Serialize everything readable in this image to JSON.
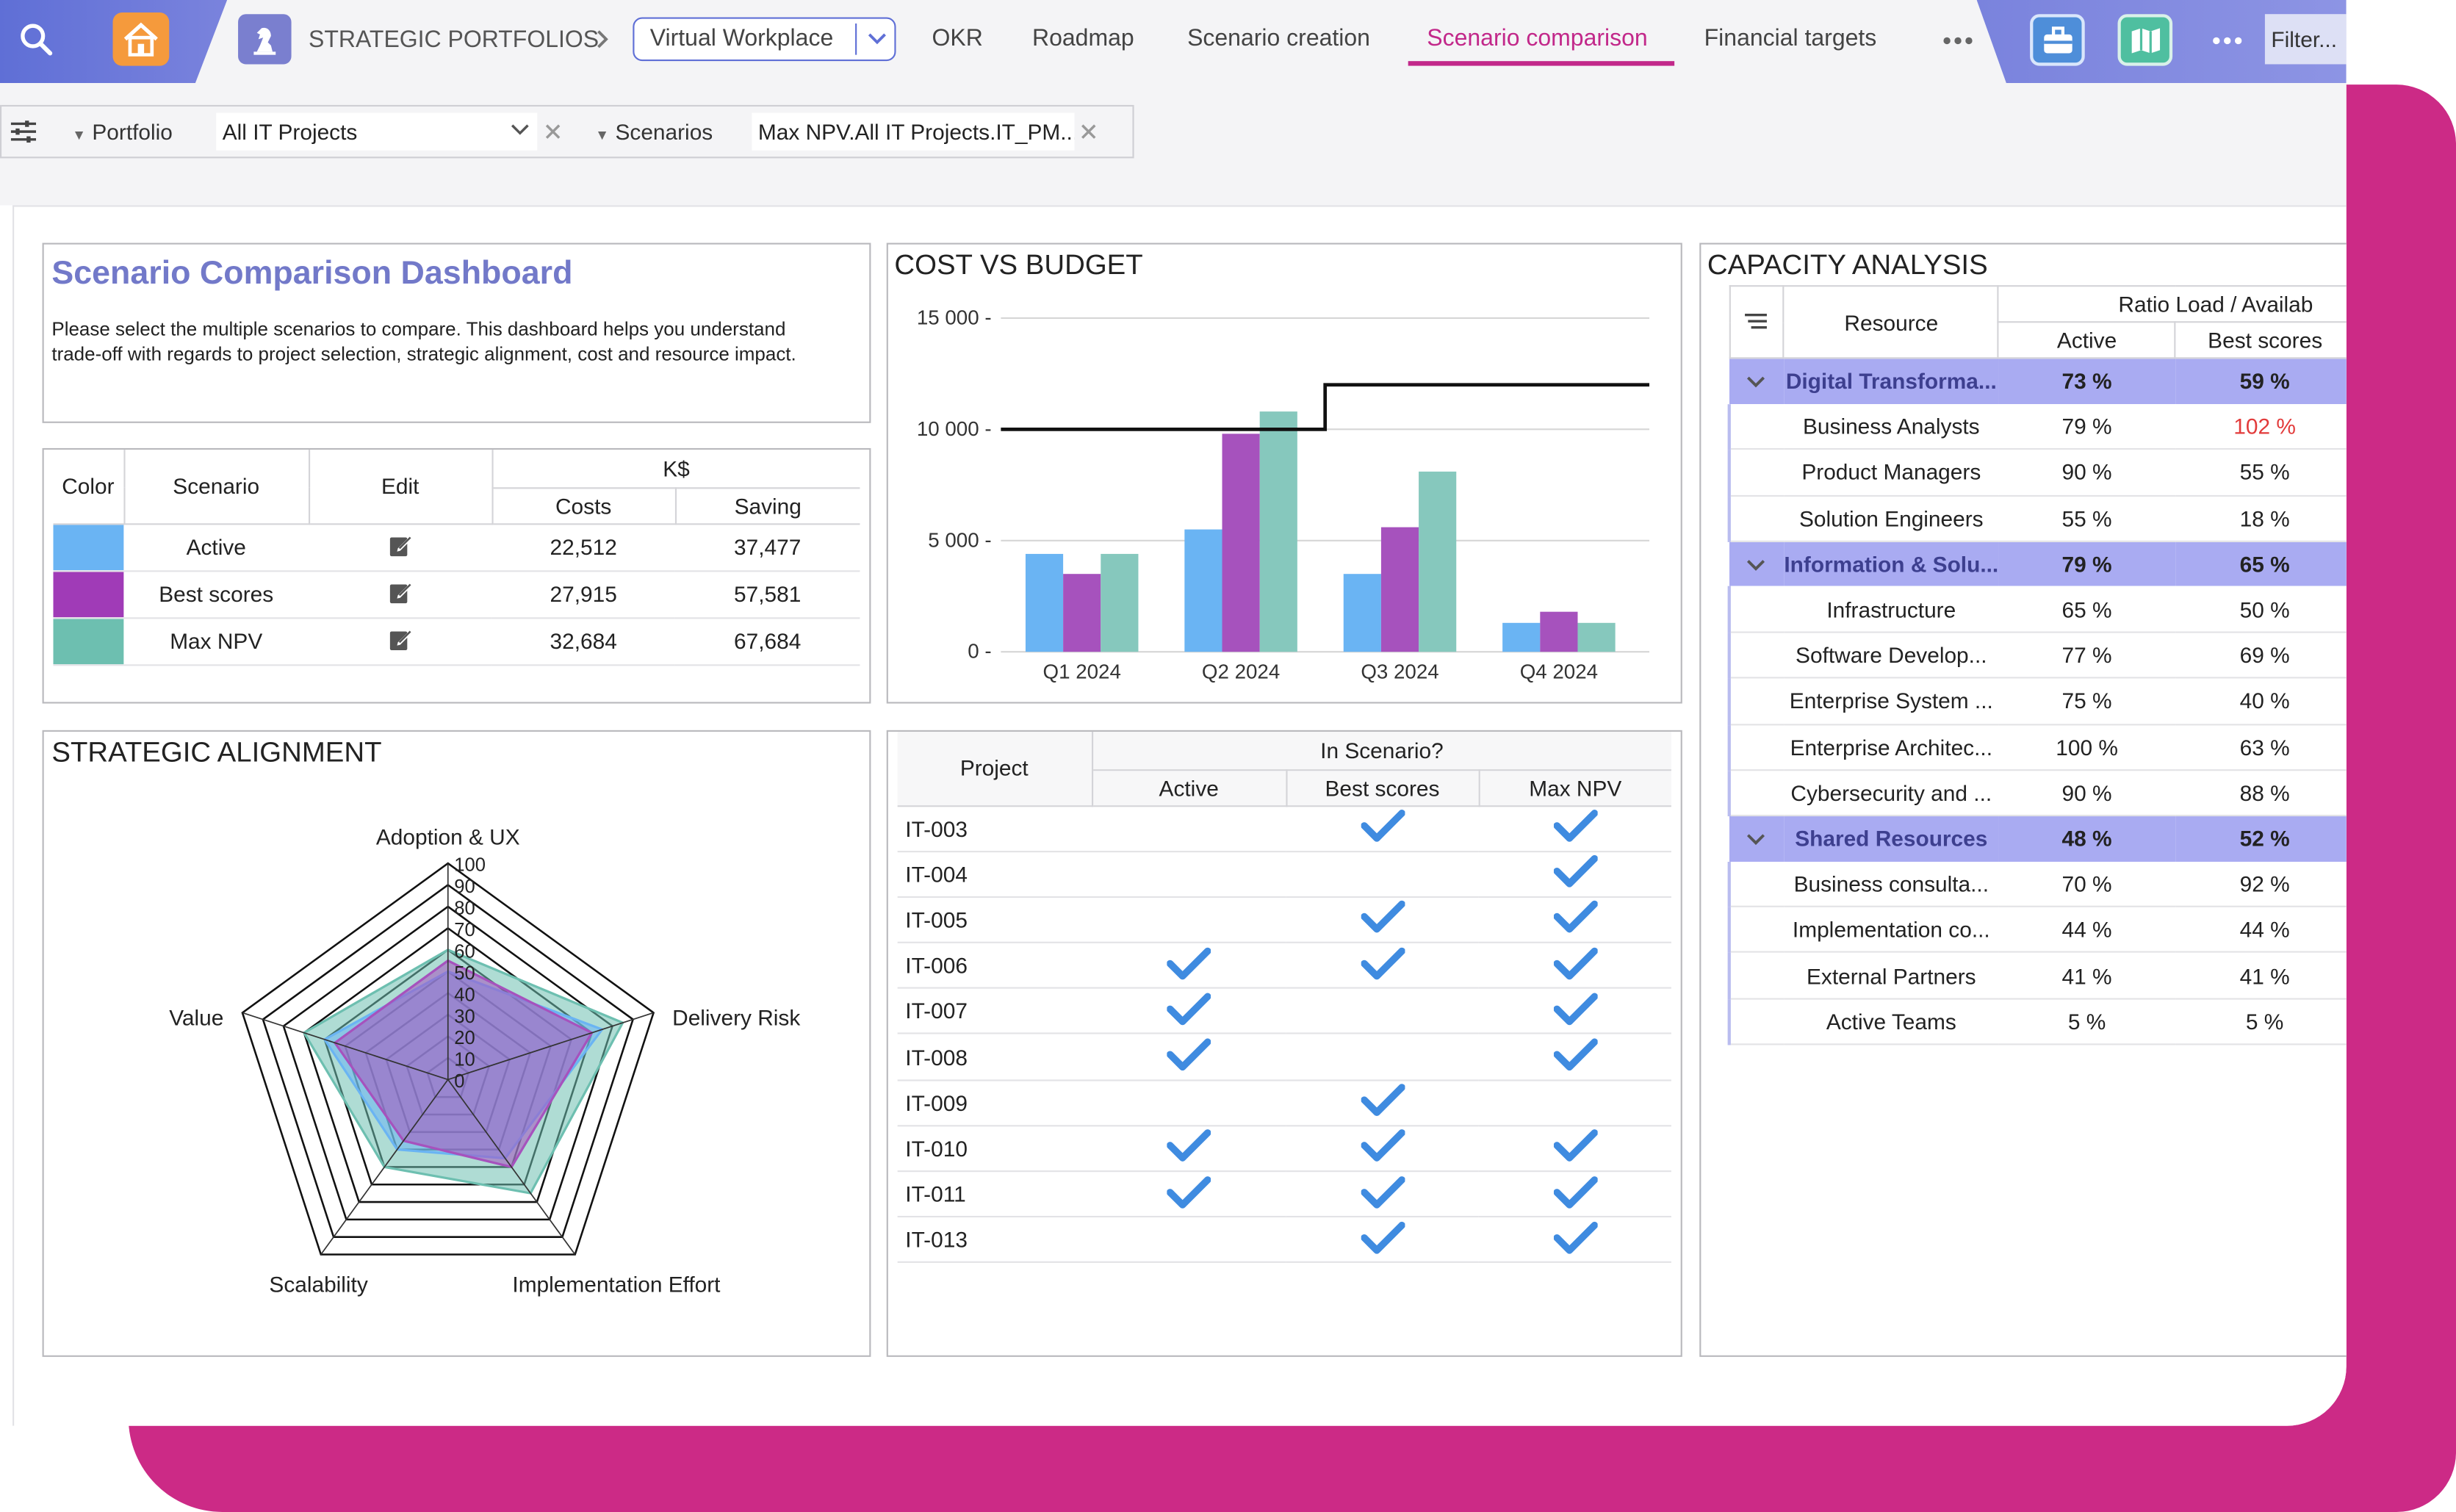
{
  "colors": {
    "accent": "#5f6fd6",
    "brand_magenta": "#cc2a86",
    "active_tab": "#c2288a",
    "series_active": "#6ab4f3",
    "series_best": "#a652bd",
    "series_maxnpv": "#86c8bd",
    "group_row": "#a9abf2",
    "over_capacity": "#e23b3b"
  },
  "header": {
    "breadcrumb": "STRATEGIC PORTFOLIOS",
    "workspace_select": "Virtual Workplace",
    "tabs": [
      "OKR",
      "Roadmap",
      "Scenario creation",
      "Scenario comparison",
      "Financial targets"
    ],
    "active_tab": "Scenario comparison",
    "filter_placeholder": "Filter...",
    "icons": [
      "search-icon",
      "home-icon",
      "strategy-chess-icon",
      "chevron-right-icon",
      "chevron-down-icon",
      "more-icon",
      "briefcase-icon",
      "map-icon"
    ]
  },
  "filters": {
    "portfolio_label": "Portfolio",
    "portfolio_value": "All IT Projects",
    "scenarios_label": "Scenarios",
    "scenarios_value": "Max NPV.All IT Projects.IT_PM..."
  },
  "intro": {
    "title": "Scenario Comparison Dashboard",
    "text": "Please select the multiple scenarios to compare. This dashboard helps you understand trade-off with regards to project selection, strategic alignment, cost and resource impact."
  },
  "scenario_table": {
    "headers": {
      "color": "Color",
      "scenario": "Scenario",
      "edit": "Edit",
      "group": "K$",
      "costs": "Costs",
      "saving": "Saving"
    },
    "rows": [
      {
        "color": "#6ab4f3",
        "name": "Active",
        "costs": "22,512",
        "saving": "37,477"
      },
      {
        "color": "#a03bb7",
        "name": "Best scores",
        "costs": "27,915",
        "saving": "57,581"
      },
      {
        "color": "#6dbfb0",
        "name": "Max NPV",
        "costs": "32,684",
        "saving": "67,684"
      }
    ]
  },
  "cost_chart": {
    "title": "COST VS BUDGET",
    "yticks": [
      "15 000",
      "10 000",
      "5 000",
      "0"
    ]
  },
  "chart_data": [
    {
      "type": "bar",
      "title": "COST VS BUDGET",
      "categories": [
        "Q1 2024",
        "Q2 2024",
        "Q3 2024",
        "Q4 2024"
      ],
      "series": [
        {
          "name": "Active",
          "color": "#6ab4f3",
          "values": [
            4400,
            5500,
            3500,
            1300
          ]
        },
        {
          "name": "Best scores",
          "color": "#a652bd",
          "values": [
            3500,
            9800,
            5600,
            1800
          ]
        },
        {
          "name": "Max NPV",
          "color": "#86c8bd",
          "values": [
            4400,
            10800,
            8100,
            1300
          ]
        }
      ],
      "budget_line": {
        "values": [
          10000,
          10000,
          12000,
          12000
        ]
      },
      "ylim": [
        0,
        15000
      ],
      "grid": true
    },
    {
      "type": "radar",
      "title": "STRATEGIC ALIGNMENT",
      "axes": [
        "Adoption & UX",
        "Delivery Risk",
        "Implementation Effort",
        "Scalability",
        "Value"
      ],
      "ticks": [
        "100",
        "90",
        "80",
        "70",
        "60",
        "50",
        "40",
        "30",
        "20",
        "10",
        "0"
      ],
      "rmax": 100,
      "series": [
        {
          "name": "Max NPV",
          "color": "#6dbfb0",
          "values": [
            60,
            85,
            65,
            50,
            70
          ]
        },
        {
          "name": "Active",
          "color": "#6ab4f3",
          "values": [
            50,
            75,
            45,
            40,
            60
          ]
        },
        {
          "name": "Best scores",
          "color": "#a652bd",
          "values": [
            55,
            70,
            50,
            35,
            55
          ]
        }
      ]
    }
  ],
  "strategic": {
    "title": "STRATEGIC ALIGNMENT"
  },
  "projects_table": {
    "headers": {
      "project": "Project",
      "group": "In Scenario?",
      "active": "Active",
      "best": "Best scores",
      "max": "Max NPV"
    },
    "rows": [
      {
        "id": "IT-003",
        "active": false,
        "best": true,
        "max": true
      },
      {
        "id": "IT-004",
        "active": false,
        "best": false,
        "max": true
      },
      {
        "id": "IT-005",
        "active": false,
        "best": true,
        "max": true
      },
      {
        "id": "IT-006",
        "active": true,
        "best": true,
        "max": true
      },
      {
        "id": "IT-007",
        "active": true,
        "best": false,
        "max": true
      },
      {
        "id": "IT-008",
        "active": true,
        "best": false,
        "max": true
      },
      {
        "id": "IT-009",
        "active": false,
        "best": true,
        "max": false
      },
      {
        "id": "IT-010",
        "active": true,
        "best": true,
        "max": true
      },
      {
        "id": "IT-011",
        "active": true,
        "best": true,
        "max": true
      },
      {
        "id": "IT-013",
        "active": false,
        "best": true,
        "max": true
      }
    ]
  },
  "capacity": {
    "title": "CAPACITY ANALYSIS",
    "headers": {
      "resource": "Resource",
      "group": "Ratio Load / Availab",
      "active": "Active",
      "best": "Best scores"
    },
    "rows": [
      {
        "name": "Digital Transforma...",
        "active": "73 %",
        "best": "59 %",
        "group": true
      },
      {
        "name": "Business Analysts",
        "active": "79 %",
        "best": "102 %",
        "over": true
      },
      {
        "name": "Product Managers",
        "active": "90 %",
        "best": "55 %"
      },
      {
        "name": "Solution Engineers",
        "active": "55 %",
        "best": "18 %"
      },
      {
        "name": "Information & Solu...",
        "active": "79 %",
        "best": "65 %",
        "group": true
      },
      {
        "name": "Infrastructure",
        "active": "65 %",
        "best": "50 %"
      },
      {
        "name": "Software Develop...",
        "active": "77 %",
        "best": "69 %"
      },
      {
        "name": "Enterprise System ...",
        "active": "75 %",
        "best": "40 %"
      },
      {
        "name": "Enterprise Architec...",
        "active": "100 %",
        "best": "63 %"
      },
      {
        "name": "Cybersecurity and ...",
        "active": "90 %",
        "best": "88 %"
      },
      {
        "name": "Shared Resources",
        "active": "48 %",
        "best": "52 %",
        "group": true
      },
      {
        "name": "Business consulta...",
        "active": "70 %",
        "best": "92 %"
      },
      {
        "name": "Implementation co...",
        "active": "44 %",
        "best": "44 %"
      },
      {
        "name": "External Partners",
        "active": "41 %",
        "best": "41 %"
      },
      {
        "name": "Active Teams",
        "active": "5 %",
        "best": "5 %"
      }
    ]
  }
}
